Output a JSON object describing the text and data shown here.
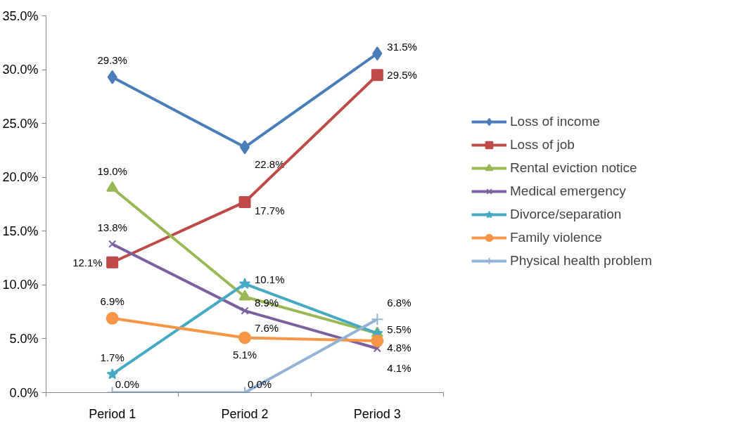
{
  "chart_data": {
    "type": "line",
    "categories": [
      "Period 1",
      "Period 2",
      "Period 3"
    ],
    "ylim": [
      0,
      35
    ],
    "yticks": [
      {
        "value": 0,
        "label": "0.0%"
      },
      {
        "value": 5,
        "label": "5.0%"
      },
      {
        "value": 10,
        "label": "10.0%"
      },
      {
        "value": 15,
        "label": "15.0%"
      },
      {
        "value": 20,
        "label": "20.0%"
      },
      {
        "value": 25,
        "label": "25.0%"
      },
      {
        "value": 30,
        "label": "30.0%"
      },
      {
        "value": 35,
        "label": "35.0%"
      }
    ],
    "grid": false,
    "legend": "right",
    "series": [
      {
        "name": "Loss of income",
        "color": "#4a7ebb",
        "marker": "diamond",
        "values": [
          29.3,
          22.8,
          31.5
        ],
        "value_labels": [
          "29.3%",
          "22.8%",
          "31.5%"
        ]
      },
      {
        "name": "Loss of job",
        "color": "#be4b48",
        "marker": "square",
        "values": [
          12.1,
          17.7,
          29.5
        ],
        "value_labels": [
          "12.1%",
          "17.7%",
          "29.5%"
        ]
      },
      {
        "name": "Rental eviction notice",
        "color": "#98b954",
        "marker": "triangle",
        "values": [
          19.0,
          8.9,
          5.5
        ],
        "value_labels": [
          "19.0%",
          "8.9%",
          null
        ]
      },
      {
        "name": "Medical emergency",
        "color": "#7d60a0",
        "marker": "cross",
        "values": [
          13.8,
          7.6,
          4.1
        ],
        "value_labels": [
          "13.8%",
          "7.6%",
          "4.1%"
        ]
      },
      {
        "name": "Divorce/separation",
        "color": "#46aac5",
        "marker": "star",
        "values": [
          1.7,
          10.1,
          5.5
        ],
        "value_labels": [
          "1.7%",
          "10.1%",
          "5.5%"
        ]
      },
      {
        "name": "Family violence",
        "color": "#f79646",
        "marker": "circle",
        "values": [
          6.9,
          5.1,
          4.8
        ],
        "value_labels": [
          "6.9%",
          "5.1%",
          "4.8%"
        ]
      },
      {
        "name": "Physical health problem",
        "color": "#95b3d7",
        "marker": "plus",
        "values": [
          0.0,
          0.0,
          6.8
        ],
        "value_labels": [
          "0.0%",
          "0.0%",
          "6.8%"
        ]
      }
    ]
  }
}
